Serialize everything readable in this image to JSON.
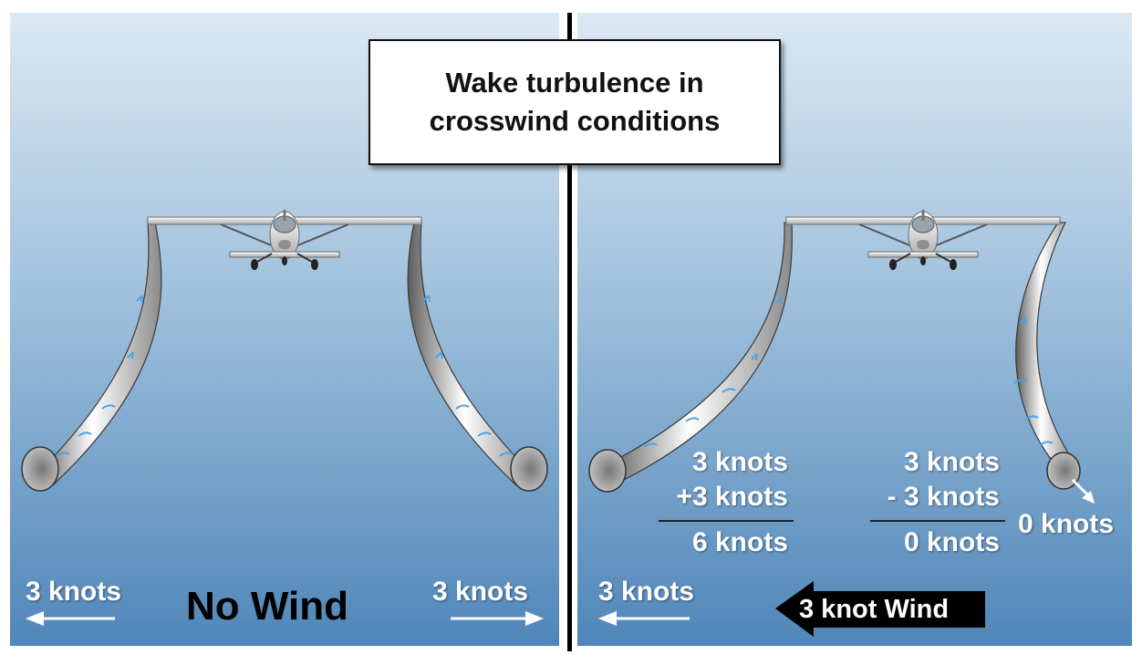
{
  "title": {
    "line1": "Wake turbulence in",
    "line2": "crosswind conditions"
  },
  "left_panel": {
    "heading": "No Wind",
    "left_speed": "3 knots",
    "right_speed": "3 knots"
  },
  "right_panel": {
    "wind_label": "3 knot Wind",
    "left_speed": "3 knots",
    "left_sum": {
      "a": "3 knots",
      "b": "+3 knots",
      "result": "6 knots"
    },
    "right_sum": {
      "a": "3 knots",
      "b": "- 3 knots",
      "result": "0 knots"
    },
    "tip_speed": "0 knots"
  },
  "colors": {
    "sky_top": "#d6e6f1",
    "sky_bottom": "#5a8fbf",
    "arrow": "#4aa3e6",
    "divider": "#000000"
  }
}
